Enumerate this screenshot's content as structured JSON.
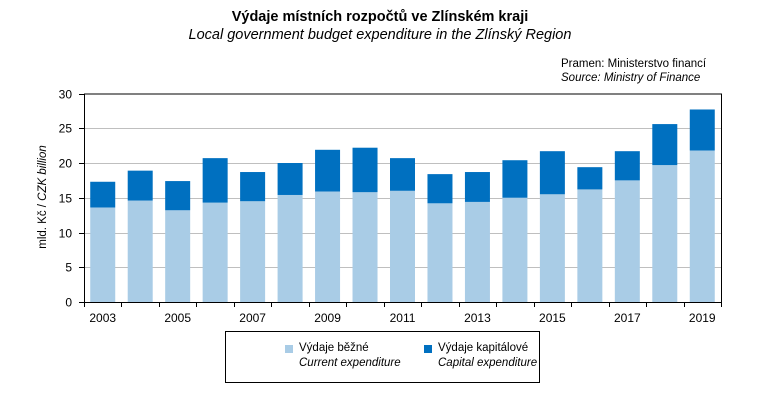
{
  "header": {
    "title": "Výdaje místních rozpočtů ve Zlínském kraji",
    "subtitle": "Local government budget expenditure in the Zlínský Region",
    "source_cz": "Pramen: Ministerstvo financí",
    "source_en": "Source: Ministry of Finance"
  },
  "chart_data": {
    "type": "bar",
    "stacked": true,
    "title": "Výdaje místních rozpočtů ve Zlínském kraji",
    "subtitle": "Local government budget expenditure in the Zlínský Region",
    "xlabel": "",
    "ylabel": "mld. Kč / CZK billion",
    "ylabel_cz": "mld. Kč / ",
    "ylabel_en": "CZK billion",
    "ylim": [
      0,
      30
    ],
    "yticks": [
      0,
      5,
      10,
      15,
      20,
      25,
      30
    ],
    "grid": true,
    "legend_position": "bottom",
    "categories": [
      "2003",
      "2004",
      "2005",
      "2006",
      "2007",
      "2008",
      "2009",
      "2010",
      "2011",
      "2012",
      "2013",
      "2014",
      "2015",
      "2016",
      "2017",
      "2018",
      "2019"
    ],
    "xtick_labels": [
      "2003",
      "",
      "2005",
      "",
      "2007",
      "",
      "2009",
      "",
      "2011",
      "",
      "2013",
      "",
      "2015",
      "",
      "2017",
      "",
      "2019"
    ],
    "series": [
      {
        "name": "Výdaje běžné / Current expenditure",
        "name_cz": "Výdaje běžné",
        "name_en": "Current expenditure",
        "color": "#A9CCE6",
        "values": [
          13.6,
          14.6,
          13.2,
          14.3,
          14.5,
          15.4,
          15.9,
          15.8,
          16.0,
          14.2,
          14.4,
          15.0,
          15.5,
          16.2,
          17.5,
          19.7,
          21.8
        ]
      },
      {
        "name": "Výdaje kapitálové / Capital expenditure",
        "name_cz": "Výdaje kapitálové",
        "name_en": "Capital expenditure",
        "color": "#0070C0",
        "values": [
          3.7,
          4.3,
          4.2,
          6.4,
          4.2,
          4.6,
          6.0,
          6.4,
          4.7,
          4.2,
          4.3,
          5.4,
          6.2,
          3.2,
          4.2,
          5.9,
          5.9
        ]
      }
    ],
    "totals": [
      17.3,
      18.9,
      17.4,
      20.7,
      18.7,
      20.0,
      21.9,
      22.2,
      20.7,
      18.4,
      18.7,
      20.4,
      21.7,
      19.4,
      21.7,
      25.6,
      27.7
    ]
  }
}
